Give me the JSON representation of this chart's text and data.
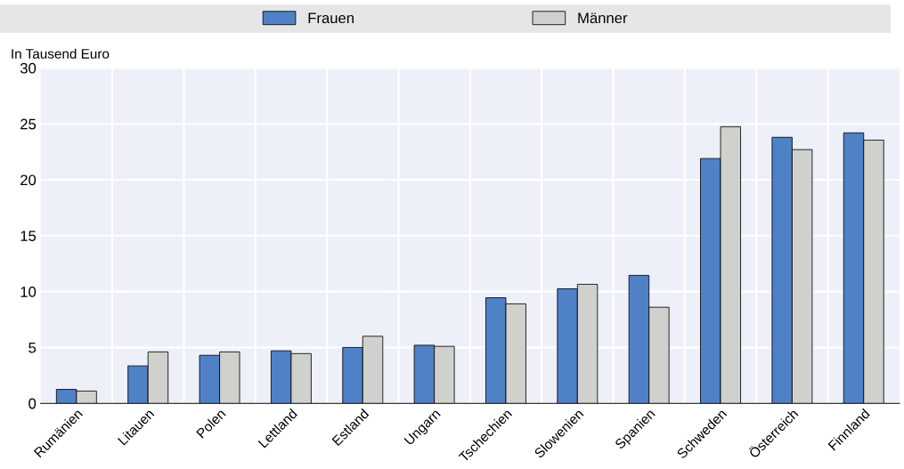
{
  "chart_data": {
    "type": "bar",
    "ylabel": "In Tausend Euro",
    "categories": [
      "Rumänien",
      "Litauen",
      "Polen",
      "Lettland",
      "Estland",
      "Ungarn",
      "Tschechien",
      "Slowenien",
      "Spanien",
      "Schweden",
      "Österreich",
      "Finnland"
    ],
    "series": [
      {
        "name": "Frauen",
        "color": "#4f81c7",
        "values": [
          1.25,
          3.35,
          4.3,
          4.7,
          5.0,
          5.2,
          9.45,
          10.25,
          11.45,
          21.9,
          23.8,
          24.2
        ]
      },
      {
        "name": "Männer",
        "color": "#d0d0cc",
        "values": [
          1.1,
          4.6,
          4.6,
          4.45,
          6.0,
          5.1,
          8.9,
          10.65,
          8.6,
          24.75,
          22.7,
          23.55
        ]
      }
    ],
    "ylim": [
      0,
      30
    ],
    "yticks": [
      0,
      5,
      10,
      15,
      20,
      25,
      30
    ],
    "grid": true,
    "legend": "top"
  }
}
